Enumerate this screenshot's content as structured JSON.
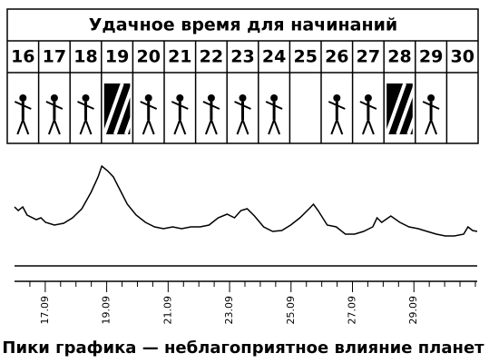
{
  "header": {
    "title": "Удачное время для начинаний",
    "days": [
      "16",
      "17",
      "18",
      "19",
      "20",
      "21",
      "22",
      "23",
      "24",
      "25",
      "26",
      "27",
      "28",
      "29",
      "30"
    ]
  },
  "chart_data": {
    "type": "line",
    "x": [
      16.0,
      16.12,
      16.27,
      16.41,
      16.71,
      16.86,
      17.01,
      17.3,
      17.6,
      17.89,
      18.19,
      18.49,
      18.72,
      18.84,
      19.02,
      19.22,
      19.37,
      19.67,
      19.96,
      20.26,
      20.56,
      20.85,
      21.15,
      21.44,
      21.74,
      22.04,
      22.33,
      22.63,
      22.92,
      23.16,
      23.37,
      23.57,
      23.81,
      24.11,
      24.4,
      24.7,
      24.99,
      25.29,
      25.59,
      25.73,
      25.88,
      26.18,
      26.47,
      26.77,
      27.07,
      27.36,
      27.66,
      27.8,
      27.95,
      28.25,
      28.54,
      28.84,
      29.14,
      29.43,
      29.73,
      30.02,
      30.32,
      30.62,
      30.76,
      30.91,
      31.06
    ],
    "values": [
      42,
      38,
      42,
      33,
      28,
      30,
      25,
      22,
      24,
      30,
      40,
      58,
      75,
      87,
      82,
      75,
      65,
      45,
      33,
      25,
      20,
      18,
      20,
      18,
      20,
      20,
      22,
      30,
      34,
      30,
      38,
      40,
      32,
      20,
      15,
      16,
      22,
      30,
      40,
      45,
      38,
      22,
      20,
      12,
      12,
      15,
      20,
      30,
      25,
      32,
      25,
      20,
      18,
      15,
      12,
      10,
      10,
      12,
      20,
      16,
      15
    ],
    "color": "#000000",
    "xlim": [
      16,
      31.06
    ],
    "ylim": [
      0,
      100
    ],
    "xticks": [
      {
        "value": 17,
        "label": "17.09"
      },
      {
        "value": 19,
        "label": "19.09"
      },
      {
        "value": 21,
        "label": "21.09"
      },
      {
        "value": 23,
        "label": "23.09"
      },
      {
        "value": 25,
        "label": "25.09"
      },
      {
        "value": 27,
        "label": "27.09"
      },
      {
        "value": 29,
        "label": "29.09"
      }
    ],
    "xminorticks": [
      16.5,
      17.5,
      18,
      18.5,
      19.5,
      20,
      20.5,
      21.5,
      22,
      22.5,
      23.5,
      24,
      24.5,
      25.5,
      26,
      26.5,
      27.5,
      28,
      28.5,
      29.5,
      30,
      30.5,
      31
    ],
    "caption": "Пики графика — неблагоприятное влияние планет"
  }
}
